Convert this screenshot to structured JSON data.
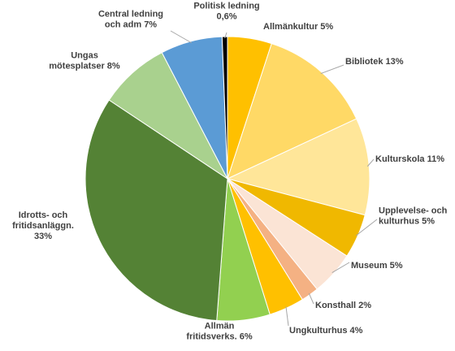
{
  "chart_data": {
    "type": "pie",
    "title": "",
    "start": "top",
    "direction": "clockwise",
    "slices": [
      {
        "lines": [
          "Allmänkultur 5%"
        ],
        "value": 5,
        "color": "#ffc000"
      },
      {
        "lines": [
          "Bibliotek 13%"
        ],
        "value": 13,
        "color": "#ffd966"
      },
      {
        "lines": [
          "Kulturskola 11%"
        ],
        "value": 11,
        "color": "#ffe699"
      },
      {
        "lines": [
          "Upplevelse- och",
          "kulturhus 5%"
        ],
        "value": 5,
        "color": "#f0b800"
      },
      {
        "lines": [
          "Museum 5%"
        ],
        "value": 5,
        "color": "#fbe4d5"
      },
      {
        "lines": [
          "Konsthall 2%"
        ],
        "value": 2,
        "color": "#f4b183"
      },
      {
        "lines": [
          "Ungkulturhus 4%"
        ],
        "value": 4,
        "color": "#ffc000"
      },
      {
        "lines": [
          "Allmän",
          "fritidsverks. 6%"
        ],
        "value": 6,
        "color": "#92d050"
      },
      {
        "lines": [
          "Idrotts- och",
          "fritidsanläggn.",
          "33%"
        ],
        "value": 33,
        "color": "#548235"
      },
      {
        "lines": [
          "Ungas",
          "mötesplatser 8%"
        ],
        "value": 8,
        "color": "#a9d18e"
      },
      {
        "lines": [
          "Central ledning",
          "och adm 7%"
        ],
        "value": 7,
        "color": "#5b9bd5"
      },
      {
        "lines": [
          "Politisk ledning",
          "0,6%"
        ],
        "value": 0.6,
        "color": "#000000"
      }
    ]
  }
}
